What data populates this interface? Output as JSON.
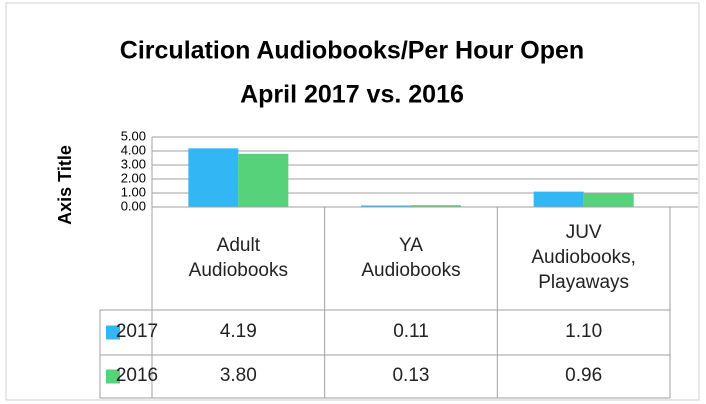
{
  "chart_data": {
    "type": "bar",
    "title": "Circulation Audiobooks/Per Hour Open",
    "subtitle": "April 2017 vs. 2016",
    "y_label": "Axis Title",
    "categories": [
      "Adult Audiobooks",
      "YA Audiobooks",
      "JUV Audiobooks, Playaways"
    ],
    "series": [
      {
        "name": "2017",
        "color": "#33b6f4",
        "values": [
          4.19,
          0.11,
          1.1
        ],
        "value_labels": [
          "4.19",
          "0.11",
          "1.10"
        ]
      },
      {
        "name": "2016",
        "color": "#56d27b",
        "values": [
          3.8,
          0.13,
          0.96
        ],
        "value_labels": [
          "3.80",
          "0.13",
          "0.96"
        ]
      }
    ],
    "ylim": [
      0,
      5
    ],
    "yticks": [
      {
        "value": 0,
        "label": "0.00"
      },
      {
        "value": 1,
        "label": "1.00"
      },
      {
        "value": 2,
        "label": "2.00"
      },
      {
        "value": 3,
        "label": "3.00"
      },
      {
        "value": 4,
        "label": "4.00"
      },
      {
        "value": 5,
        "label": "5.00"
      }
    ],
    "grid": true
  }
}
